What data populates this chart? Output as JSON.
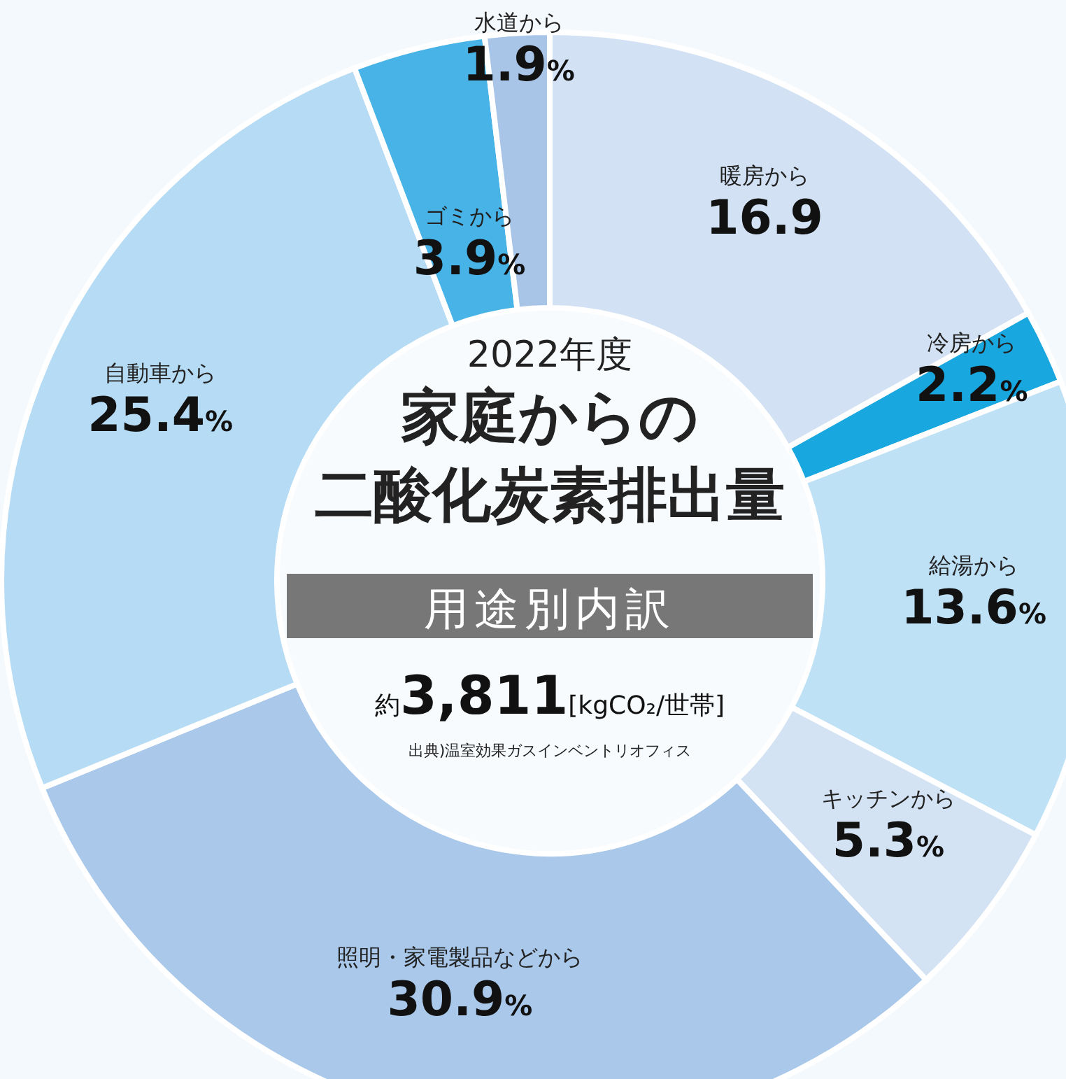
{
  "chart_data": {
    "type": "donut",
    "title": "家庭からの",
    "subtitle": "二酸化炭素排出量",
    "categories": [
      "暖房から",
      "冷房から",
      "給湯から",
      "キッチンから",
      "照明・家電製品などから",
      "自動車から",
      "ゴミから",
      "水道から"
    ],
    "values": [
      16.9,
      2.2,
      13.6,
      5.3,
      30.9,
      25.4,
      3.9,
      1.9
    ],
    "value_labels": [
      "16.9",
      "2.2%",
      "13.6%",
      "5.3%",
      "30.9%",
      "25.4%",
      "3.9%",
      "1.9%"
    ],
    "colors": [
      "#d2e2f4",
      "#19a7e0",
      "#bfe1f6",
      "#d4e3f3",
      "#a9c8ea",
      "#b6dcf5",
      "#48b3e6",
      "#a8c5e8"
    ],
    "annotations": [
      "2022年度",
      "用途別内訳",
      "約3,811[kgCO₂/世帯]",
      "出典)温室効果ガスインベントリオフィス"
    ]
  }
}
